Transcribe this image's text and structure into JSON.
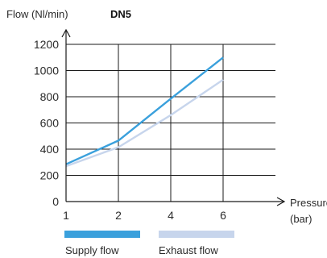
{
  "chart_data": {
    "type": "line",
    "title": "DN5",
    "ylabel": "Flow (Nl/min)",
    "xlabel": "Pressure (bar)",
    "xlabel_lines": [
      "Pressure",
      "(bar)"
    ],
    "categories": [
      "1",
      "2",
      "4",
      "6"
    ],
    "ylim": [
      0,
      1200
    ],
    "yticks": [
      0,
      200,
      400,
      600,
      800,
      1000,
      1200
    ],
    "grid": true,
    "legend": "bottom",
    "series": [
      {
        "name": "Supply flow",
        "values": [
          285,
          465,
          785,
          1100
        ],
        "color": "#3aa0dc"
      },
      {
        "name": "Exhaust flow",
        "values": [
          270,
          415,
          660,
          930
        ],
        "color": "#c7d5ec"
      }
    ]
  }
}
